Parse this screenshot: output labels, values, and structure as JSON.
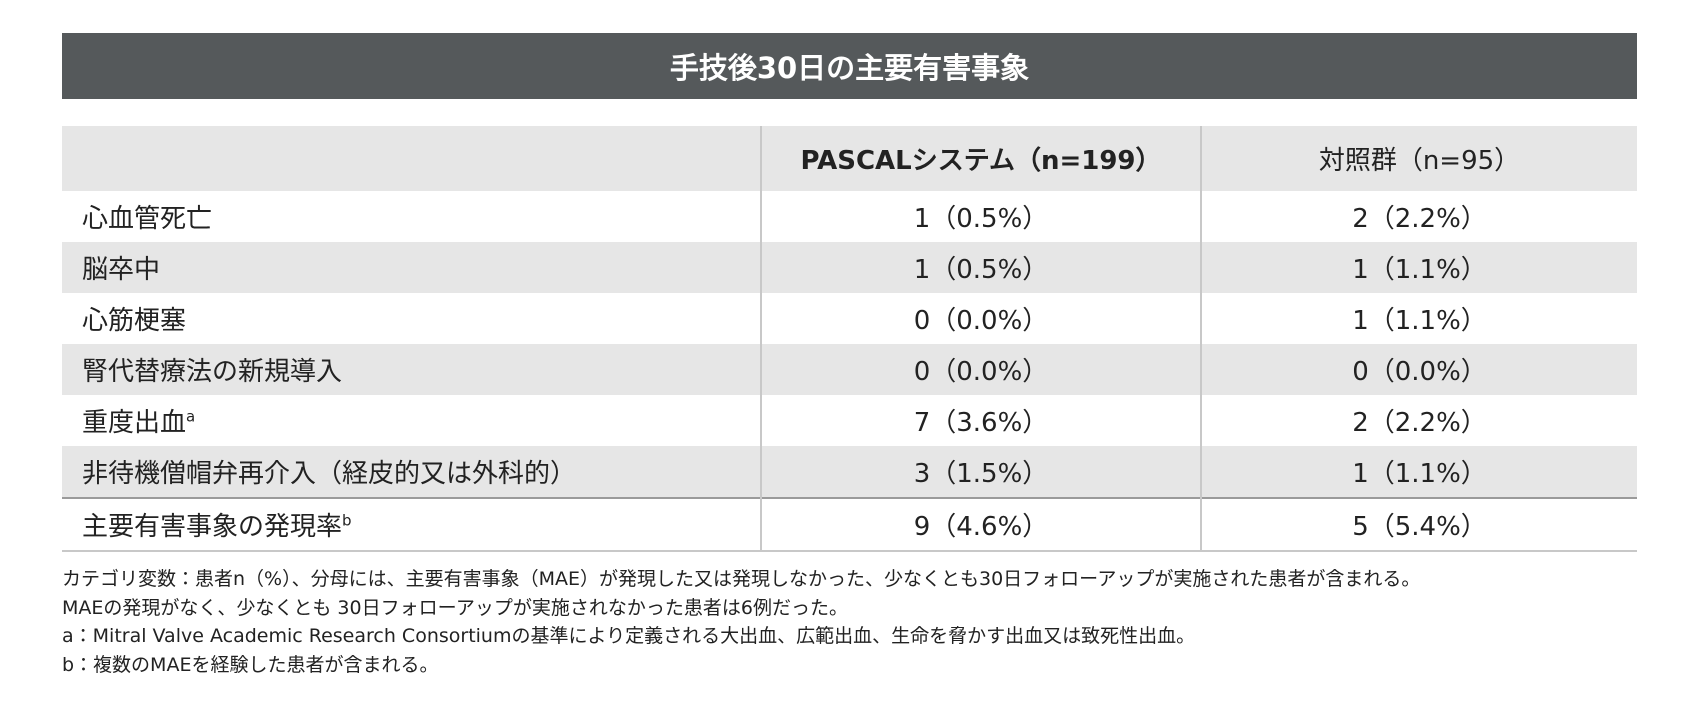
{
  "header": {
    "title": "手技後30日の主要有害事象"
  },
  "table": {
    "columns": [
      "PASCALシステム（n=199）",
      "対照群（n=95）"
    ],
    "rows": [
      {
        "label": "心血管死亡",
        "cells": [
          "1（0.5%）",
          "2（2.2%）"
        ]
      },
      {
        "label": "脳卒中",
        "cells": [
          "1（0.5%）",
          "1（1.1%）"
        ]
      },
      {
        "label": "心筋梗塞",
        "cells": [
          "0（0.0%）",
          "1（1.1%）"
        ]
      },
      {
        "label": "腎代替療法の新規導入",
        "cells": [
          "0（0.0%）",
          "0（0.0%）"
        ]
      },
      {
        "label": "重度出血",
        "note": "a",
        "cells": [
          "7（3.6%）",
          "2（2.2%）"
        ]
      },
      {
        "label": "非待機僧帽弁再介入（経皮的又は外科的）",
        "cells": [
          "3（1.5%）",
          "1（1.1%）"
        ]
      },
      {
        "label": "主要有害事象の発現率",
        "note": "b",
        "cells": [
          "9（4.6%）",
          "5（5.4%）"
        ]
      }
    ]
  },
  "footnotes": [
    "カテゴリ変数：患者n（%）、分母には、主要有害事象（MAE）が発現した又は発現しなかった、少なくとも30日フォローアップが実施された患者が含まれる。",
    "MAEの発現がなく、少なくとも 30日フォローアップが実施されなかった患者は6例だった。",
    "a：Mitral Valve Academic Research Consortiumの基準により定義される大出血、広範出血、生命を脅かす出血又は致死性出血。",
    "b：複数のMAEを経験した患者が含まれる。"
  ]
}
